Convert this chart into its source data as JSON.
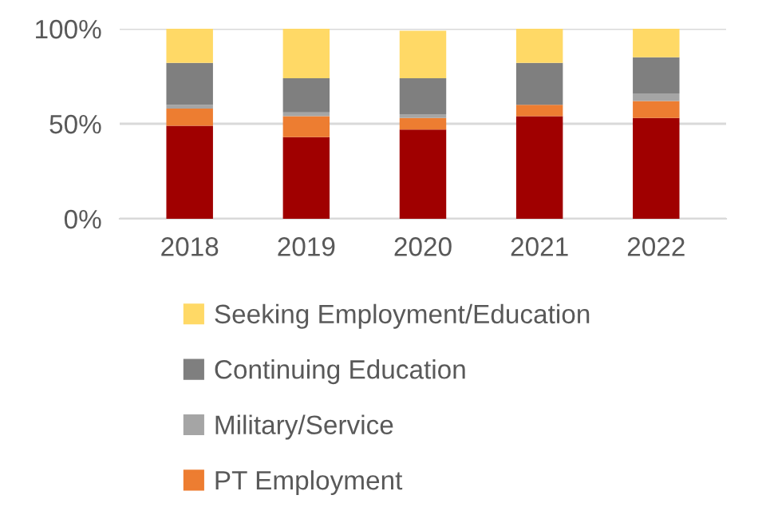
{
  "chart_data": {
    "type": "bar",
    "stacked": true,
    "categories": [
      "2018",
      "2019",
      "2020",
      "2021",
      "2022"
    ],
    "series": [
      {
        "color": "#a00000",
        "values": [
          49,
          43,
          47,
          54,
          53
        ]
      },
      {
        "name": "PT Employment",
        "color": "#ed7d31",
        "values": [
          9,
          11,
          6,
          6,
          9
        ]
      },
      {
        "name": "Military/Service",
        "color": "#a5a5a5",
        "values": [
          2,
          2,
          2,
          0,
          4
        ]
      },
      {
        "name": "Continuing Education",
        "color": "#7f7f7f",
        "values": [
          22,
          18,
          19,
          22,
          19
        ]
      },
      {
        "name": "Seeking Employment/Education",
        "color": "#ffd966",
        "values": [
          18,
          26,
          25,
          18,
          15
        ]
      }
    ],
    "ylim": [
      0,
      100
    ],
    "yticks": [
      {
        "value": 0,
        "label": "0%"
      },
      {
        "value": 50,
        "label": "50%"
      },
      {
        "value": 100,
        "label": "100%"
      }
    ],
    "grid": "y",
    "legend": "bottom"
  }
}
